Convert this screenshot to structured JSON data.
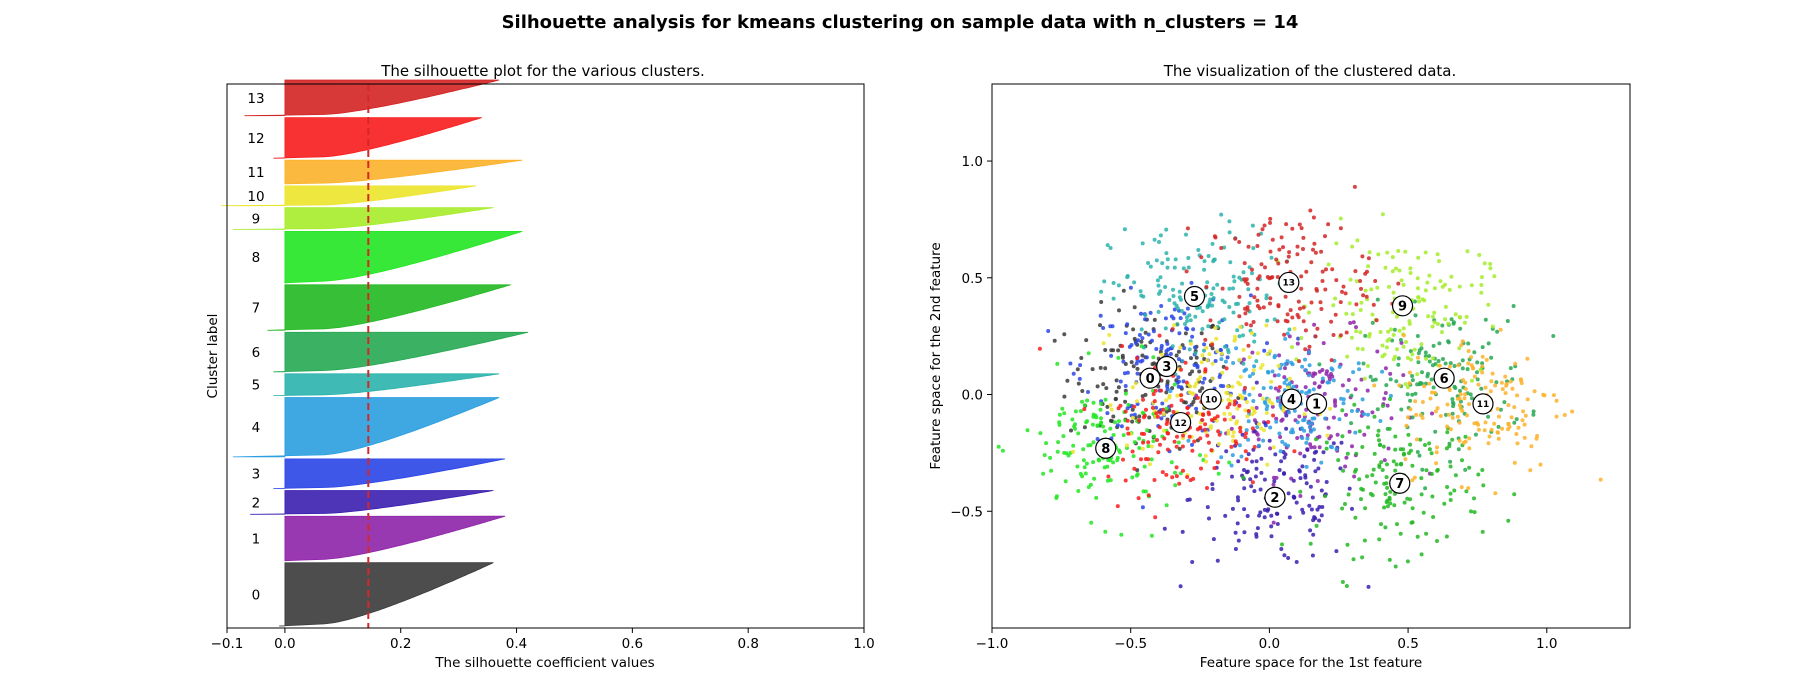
{
  "suptitle": "Silhouette analysis for kmeans clustering on sample data with n_clusters = 14",
  "chart_data": [
    {
      "type": "area",
      "title": "The silhouette plot for the various clusters.",
      "xlabel": "The silhouette coefficient values",
      "ylabel": "Cluster label",
      "xlim": [
        -0.1,
        1.0
      ],
      "ylim": [
        0,
        2750
      ],
      "xticks": [
        -0.1,
        0.0,
        0.2,
        0.4,
        0.6,
        0.8,
        1.0
      ],
      "xtick_labels": [
        "−0.1",
        "0.0",
        "0.2",
        "0.4",
        "0.6",
        "0.8",
        "1.0"
      ],
      "average_silhouette": 0.144,
      "average_line_color": "#d62728",
      "clusters": [
        {
          "label": "0",
          "y_lower": 10,
          "size": 320,
          "min": -0.01,
          "max": 0.36,
          "color": "#3a3a3a"
        },
        {
          "label": "1",
          "y_lower": 340,
          "size": 225,
          "min": 0.0,
          "max": 0.38,
          "color": "#8e24aa"
        },
        {
          "label": "2",
          "y_lower": 575,
          "size": 120,
          "min": -0.06,
          "max": 0.36,
          "color": "#3b1fb0"
        },
        {
          "label": "3",
          "y_lower": 705,
          "size": 150,
          "min": -0.02,
          "max": 0.38,
          "color": "#2a45e6"
        },
        {
          "label": "4",
          "y_lower": 865,
          "size": 300,
          "min": -0.09,
          "max": 0.37,
          "color": "#2a9ee0"
        },
        {
          "label": "5",
          "y_lower": 1175,
          "size": 110,
          "min": -0.02,
          "max": 0.37,
          "color": "#2ab3ac"
        },
        {
          "label": "6",
          "y_lower": 1295,
          "size": 200,
          "min": -0.02,
          "max": 0.42,
          "color": "#26a852"
        },
        {
          "label": "7",
          "y_lower": 1505,
          "size": 230,
          "min": -0.03,
          "max": 0.39,
          "color": "#22b822"
        },
        {
          "label": "8",
          "y_lower": 1745,
          "size": 260,
          "min": 0.0,
          "max": 0.41,
          "color": "#22e622"
        },
        {
          "label": "9",
          "y_lower": 2015,
          "size": 110,
          "min": -0.09,
          "max": 0.36,
          "color": "#a6ec2a"
        },
        {
          "label": "10",
          "y_lower": 2135,
          "size": 100,
          "min": -0.11,
          "max": 0.33,
          "color": "#ece42a"
        },
        {
          "label": "11",
          "y_lower": 2245,
          "size": 120,
          "min": 0.0,
          "max": 0.41,
          "color": "#fbb22a"
        },
        {
          "label": "12",
          "y_lower": 2375,
          "size": 205,
          "min": -0.02,
          "max": 0.34,
          "color": "#f71c1c"
        },
        {
          "label": "13",
          "y_lower": 2590,
          "size": 180,
          "min": -0.07,
          "max": 0.37,
          "color": "#d32424"
        }
      ]
    },
    {
      "type": "scatter",
      "title": "The visualization of the clustered data.",
      "xlabel": "Feature space for the 1st feature",
      "ylabel": "Feature space for the 2nd feature",
      "xlim": [
        -1.0,
        1.3
      ],
      "ylim": [
        -1.0,
        1.33
      ],
      "xticks": [
        -1.0,
        -0.5,
        0.0,
        0.5,
        1.0
      ],
      "xtick_labels": [
        "−1.0",
        "−0.5",
        "0.0",
        "0.5",
        "1.0"
      ],
      "yticks": [
        -0.5,
        0.0,
        0.5,
        1.0
      ],
      "ytick_labels": [
        "−0.5",
        "0.0",
        "0.5",
        "1.0"
      ],
      "centers": [
        {
          "label": "0",
          "x": -0.43,
          "y": 0.07,
          "color": "#3a3a3a"
        },
        {
          "label": "1",
          "x": 0.17,
          "y": -0.04,
          "color": "#8e24aa"
        },
        {
          "label": "2",
          "x": 0.02,
          "y": -0.44,
          "color": "#3b1fb0"
        },
        {
          "label": "3",
          "x": -0.37,
          "y": 0.12,
          "color": "#2a45e6"
        },
        {
          "label": "4",
          "x": 0.08,
          "y": -0.02,
          "color": "#2a9ee0"
        },
        {
          "label": "5",
          "x": -0.27,
          "y": 0.42,
          "color": "#2ab3ac"
        },
        {
          "label": "6",
          "x": 0.63,
          "y": 0.07,
          "color": "#26a852"
        },
        {
          "label": "7",
          "x": 0.47,
          "y": -0.38,
          "color": "#22b822"
        },
        {
          "label": "8",
          "x": -0.59,
          "y": -0.23,
          "color": "#22e622"
        },
        {
          "label": "9",
          "x": 0.48,
          "y": 0.38,
          "color": "#a6ec2a"
        },
        {
          "label": "10",
          "x": -0.21,
          "y": -0.02,
          "color": "#ece42a"
        },
        {
          "label": "11",
          "x": 0.77,
          "y": -0.04,
          "color": "#fbb22a"
        },
        {
          "label": "12",
          "x": -0.32,
          "y": -0.12,
          "color": "#f71c1c"
        },
        {
          "label": "13",
          "x": 0.07,
          "y": 0.48,
          "color": "#d32424"
        }
      ]
    }
  ]
}
